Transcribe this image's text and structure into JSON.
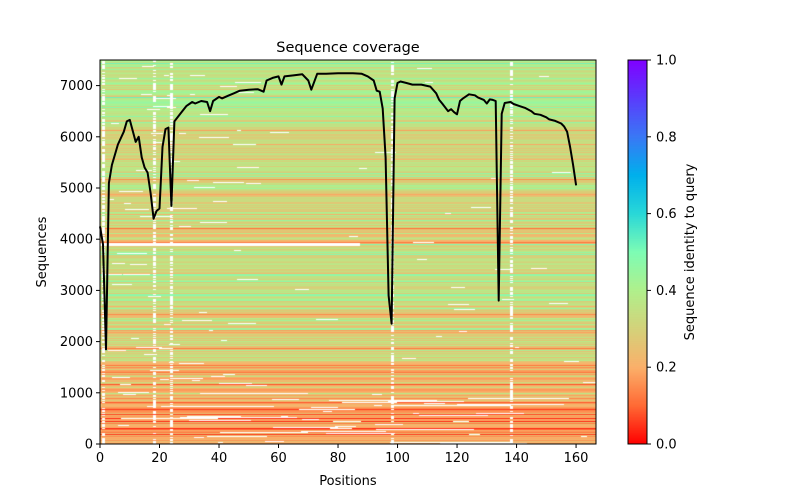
{
  "chart_data": {
    "type": "heatmap",
    "title": "Sequence coverage",
    "xlabel": "Positions",
    "ylabel": "Sequences",
    "xlim": [
      0,
      166.7
    ],
    "ylim": [
      0,
      7500
    ],
    "x_ticks": [
      0,
      20,
      40,
      60,
      80,
      100,
      120,
      140,
      160
    ],
    "x_tick_labels": [
      "0",
      "20",
      "40",
      "60",
      "80",
      "100",
      "120",
      "140",
      "160"
    ],
    "y_ticks": [
      0,
      1000,
      2000,
      3000,
      4000,
      5000,
      6000,
      7000
    ],
    "y_tick_labels": [
      "0",
      "1000",
      "2000",
      "3000",
      "4000",
      "5000",
      "6000",
      "7000"
    ],
    "grid": false,
    "colorbar": {
      "label": "Sequence identity to query",
      "colormap": "rainbow_r",
      "range": [
        0.0,
        1.0
      ],
      "ticks": [
        0.0,
        0.2,
        0.4,
        0.6,
        0.8,
        1.0
      ],
      "tick_labels": [
        "0.0",
        "0.2",
        "0.4",
        "0.6",
        "0.8",
        "1.0"
      ],
      "stops": [
        "#ff0000",
        "#ff6a35",
        "#fbb06a",
        "#d4d27a",
        "#b0f08c",
        "#7dfcb5",
        "#29d8d8",
        "#00b0ec",
        "#3a78f5",
        "#5a3cfc",
        "#8000ff"
      ]
    },
    "identity_bands": [
      {
        "from": 0,
        "to": 800,
        "identity": 0.18
      },
      {
        "from": 800,
        "to": 1600,
        "identity": 0.22
      },
      {
        "from": 1600,
        "to": 2600,
        "identity": 0.28
      },
      {
        "from": 2600,
        "to": 3900,
        "identity": 0.33
      },
      {
        "from": 3900,
        "to": 3960,
        "identity": 0.15
      },
      {
        "from": 3960,
        "to": 4250,
        "identity": 0.26
      },
      {
        "from": 4250,
        "to": 5200,
        "identity": 0.3
      },
      {
        "from": 5200,
        "to": 6500,
        "identity": 0.32
      },
      {
        "from": 6500,
        "to": 7500,
        "identity": 0.38
      }
    ],
    "coverage_line": {
      "color": "#000000",
      "x": [
        0,
        1,
        2,
        3,
        4,
        6,
        8,
        9,
        10,
        12,
        13,
        14,
        15,
        16,
        17,
        18,
        19,
        20,
        21,
        22,
        23,
        24,
        25,
        27,
        29,
        31,
        32,
        34,
        36,
        37,
        38,
        40,
        41,
        43,
        45,
        47,
        50,
        53,
        55,
        56,
        58,
        60,
        61,
        62,
        65,
        68,
        70,
        71,
        73,
        76,
        80,
        85,
        88,
        90,
        92,
        93,
        94,
        95,
        96,
        97,
        98,
        99,
        100,
        101,
        103,
        105,
        108,
        111,
        113,
        114,
        115,
        117,
        118,
        119,
        120,
        121,
        122,
        124,
        126,
        127,
        129,
        130,
        131,
        132,
        133,
        134,
        135,
        136,
        138,
        139,
        141,
        142,
        143,
        145,
        146,
        148,
        150,
        151,
        153,
        155,
        156,
        157,
        158,
        159,
        160
      ],
      "y": [
        4250,
        3900,
        1850,
        5100,
        5450,
        5850,
        6100,
        6300,
        6330,
        5900,
        6000,
        5600,
        5400,
        5300,
        4900,
        4400,
        4550,
        4600,
        5800,
        6150,
        6180,
        4650,
        6300,
        6450,
        6600,
        6680,
        6650,
        6700,
        6680,
        6500,
        6700,
        6780,
        6750,
        6800,
        6850,
        6900,
        6920,
        6930,
        6880,
        7100,
        7150,
        7180,
        7020,
        7180,
        7200,
        7220,
        7100,
        6920,
        7230,
        7230,
        7240,
        7240,
        7230,
        7180,
        7100,
        6900,
        6880,
        6550,
        5600,
        2900,
        2350,
        6750,
        7050,
        7080,
        7050,
        7020,
        7020,
        6980,
        6850,
        6720,
        6650,
        6500,
        6540,
        6480,
        6440,
        6700,
        6750,
        6830,
        6810,
        6770,
        6720,
        6650,
        6730,
        6720,
        6700,
        2800,
        6450,
        6660,
        6680,
        6640,
        6600,
        6580,
        6560,
        6500,
        6450,
        6430,
        6380,
        6340,
        6310,
        6260,
        6200,
        6100,
        5800,
        5450,
        5050
      ]
    },
    "gap_columns": [
      1,
      18,
      24,
      98,
      138
    ]
  }
}
